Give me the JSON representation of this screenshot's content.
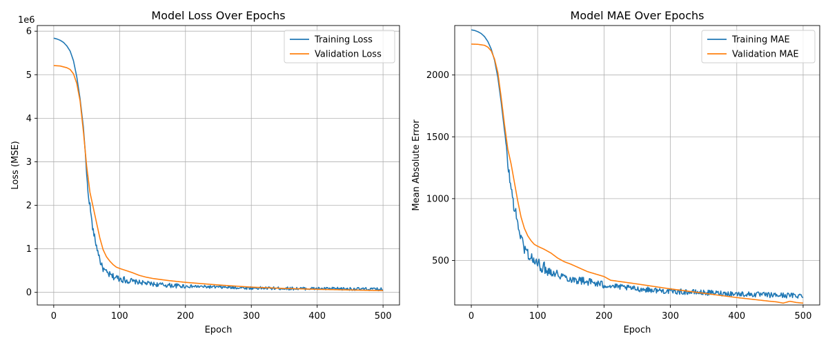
{
  "chart_data": [
    {
      "type": "line",
      "title": "Model Loss Over Epochs",
      "xlabel": "Epoch",
      "ylabel": "Loss (MSE)",
      "offset_label": "1e6",
      "xlim": [
        -25,
        525
      ],
      "ylim": [
        -0.29,
        6.13
      ],
      "xticks": [
        0,
        100,
        200,
        300,
        400,
        500
      ],
      "xtick_labels": [
        "0",
        "100",
        "200",
        "300",
        "400",
        "500"
      ],
      "yticks": [
        0,
        1,
        2,
        3,
        4,
        5,
        6
      ],
      "ytick_labels": [
        "0",
        "1",
        "2",
        "3",
        "4",
        "5",
        "6"
      ],
      "grid": true,
      "legend_position": "upper right",
      "series": [
        {
          "name": "Training Loss",
          "color": "#1f77b4",
          "noise": 0.035,
          "points": [
            [
              0,
              5.84
            ],
            [
              5,
              5.82
            ],
            [
              10,
              5.79
            ],
            [
              15,
              5.74
            ],
            [
              20,
              5.66
            ],
            [
              25,
              5.54
            ],
            [
              30,
              5.32
            ],
            [
              35,
              4.95
            ],
            [
              40,
              4.45
            ],
            [
              45,
              3.8
            ],
            [
              48,
              3.2
            ],
            [
              50,
              2.7
            ],
            [
              52,
              2.3
            ],
            [
              55,
              2.0
            ],
            [
              58,
              1.6
            ],
            [
              60,
              1.4
            ],
            [
              63,
              1.2
            ],
            [
              65,
              1.05
            ],
            [
              68,
              0.9
            ],
            [
              70,
              0.75
            ],
            [
              73,
              0.6
            ],
            [
              76,
              0.52
            ],
            [
              80,
              0.45
            ],
            [
              85,
              0.4
            ],
            [
              90,
              0.36
            ],
            [
              100,
              0.32
            ],
            [
              110,
              0.28
            ],
            [
              120,
              0.25
            ],
            [
              130,
              0.23
            ],
            [
              140,
              0.21
            ],
            [
              150,
              0.19
            ],
            [
              175,
              0.16
            ],
            [
              200,
              0.14
            ],
            [
              250,
              0.12
            ],
            [
              300,
              0.1
            ],
            [
              350,
              0.09
            ],
            [
              400,
              0.085
            ],
            [
              450,
              0.08
            ],
            [
              500,
              0.07
            ]
          ]
        },
        {
          "name": "Validation Loss",
          "color": "#ff7f0e",
          "noise": 0,
          "points": [
            [
              0,
              5.21
            ],
            [
              10,
              5.2
            ],
            [
              20,
              5.16
            ],
            [
              25,
              5.12
            ],
            [
              30,
              5.02
            ],
            [
              35,
              4.8
            ],
            [
              40,
              4.4
            ],
            [
              45,
              3.7
            ],
            [
              50,
              2.9
            ],
            [
              55,
              2.3
            ],
            [
              60,
              1.95
            ],
            [
              65,
              1.6
            ],
            [
              70,
              1.25
            ],
            [
              75,
              0.98
            ],
            [
              80,
              0.82
            ],
            [
              85,
              0.72
            ],
            [
              90,
              0.64
            ],
            [
              95,
              0.58
            ],
            [
              100,
              0.55
            ],
            [
              110,
              0.5
            ],
            [
              120,
              0.45
            ],
            [
              130,
              0.39
            ],
            [
              140,
              0.35
            ],
            [
              150,
              0.32
            ],
            [
              175,
              0.27
            ],
            [
              200,
              0.23
            ],
            [
              250,
              0.17
            ],
            [
              300,
              0.12
            ],
            [
              350,
              0.09
            ],
            [
              400,
              0.07
            ],
            [
              450,
              0.055
            ],
            [
              500,
              0.04
            ]
          ]
        }
      ]
    },
    {
      "type": "line",
      "title": "Model MAE Over Epochs",
      "xlabel": "Epoch",
      "ylabel": "Mean Absolute Error",
      "offset_label": "",
      "xlim": [
        -25,
        525
      ],
      "ylim": [
        140,
        2400
      ],
      "xticks": [
        0,
        100,
        200,
        300,
        400,
        500
      ],
      "xtick_labels": [
        "0",
        "100",
        "200",
        "300",
        "400",
        "500"
      ],
      "yticks": [
        500,
        1000,
        1500,
        2000
      ],
      "ytick_labels": [
        "500",
        "1000",
        "1500",
        "2000"
      ],
      "grid": true,
      "legend_position": "upper right",
      "series": [
        {
          "name": "Training MAE",
          "color": "#1f77b4",
          "noise": 22,
          "points": [
            [
              0,
              2365
            ],
            [
              5,
              2360
            ],
            [
              10,
              2350
            ],
            [
              15,
              2335
            ],
            [
              20,
              2310
            ],
            [
              25,
              2270
            ],
            [
              30,
              2210
            ],
            [
              35,
              2120
            ],
            [
              40,
              1980
            ],
            [
              45,
              1780
            ],
            [
              50,
              1550
            ],
            [
              55,
              1280
            ],
            [
              60,
              1080
            ],
            [
              65,
              920
            ],
            [
              70,
              800
            ],
            [
              75,
              680
            ],
            [
              80,
              600
            ],
            [
              85,
              560
            ],
            [
              90,
              520
            ],
            [
              100,
              470
            ],
            [
              110,
              440
            ],
            [
              120,
              410
            ],
            [
              130,
              390
            ],
            [
              140,
              370
            ],
            [
              150,
              350
            ],
            [
              175,
              330
            ],
            [
              200,
              300
            ],
            [
              250,
              270
            ],
            [
              300,
              250
            ],
            [
              350,
              240
            ],
            [
              400,
              230
            ],
            [
              450,
              220
            ],
            [
              500,
              215
            ]
          ]
        },
        {
          "name": "Validation MAE",
          "color": "#ff7f0e",
          "noise": 0,
          "points": [
            [
              0,
              2250
            ],
            [
              10,
              2248
            ],
            [
              20,
              2240
            ],
            [
              25,
              2225
            ],
            [
              30,
              2195
            ],
            [
              35,
              2130
            ],
            [
              40,
              2020
            ],
            [
              45,
              1820
            ],
            [
              50,
              1600
            ],
            [
              55,
              1400
            ],
            [
              60,
              1280
            ],
            [
              65,
              1130
            ],
            [
              70,
              980
            ],
            [
              75,
              850
            ],
            [
              80,
              760
            ],
            [
              85,
              700
            ],
            [
              90,
              660
            ],
            [
              95,
              630
            ],
            [
              100,
              615
            ],
            [
              110,
              590
            ],
            [
              120,
              560
            ],
            [
              130,
              520
            ],
            [
              140,
              490
            ],
            [
              150,
              470
            ],
            [
              175,
              410
            ],
            [
              200,
              370
            ],
            [
              210,
              340
            ],
            [
              250,
              310
            ],
            [
              300,
              270
            ],
            [
              350,
              235
            ],
            [
              400,
              200
            ],
            [
              450,
              170
            ],
            [
              460,
              165
            ],
            [
              470,
              155
            ],
            [
              480,
              170
            ],
            [
              490,
              160
            ],
            [
              500,
              155
            ]
          ]
        }
      ]
    }
  ]
}
